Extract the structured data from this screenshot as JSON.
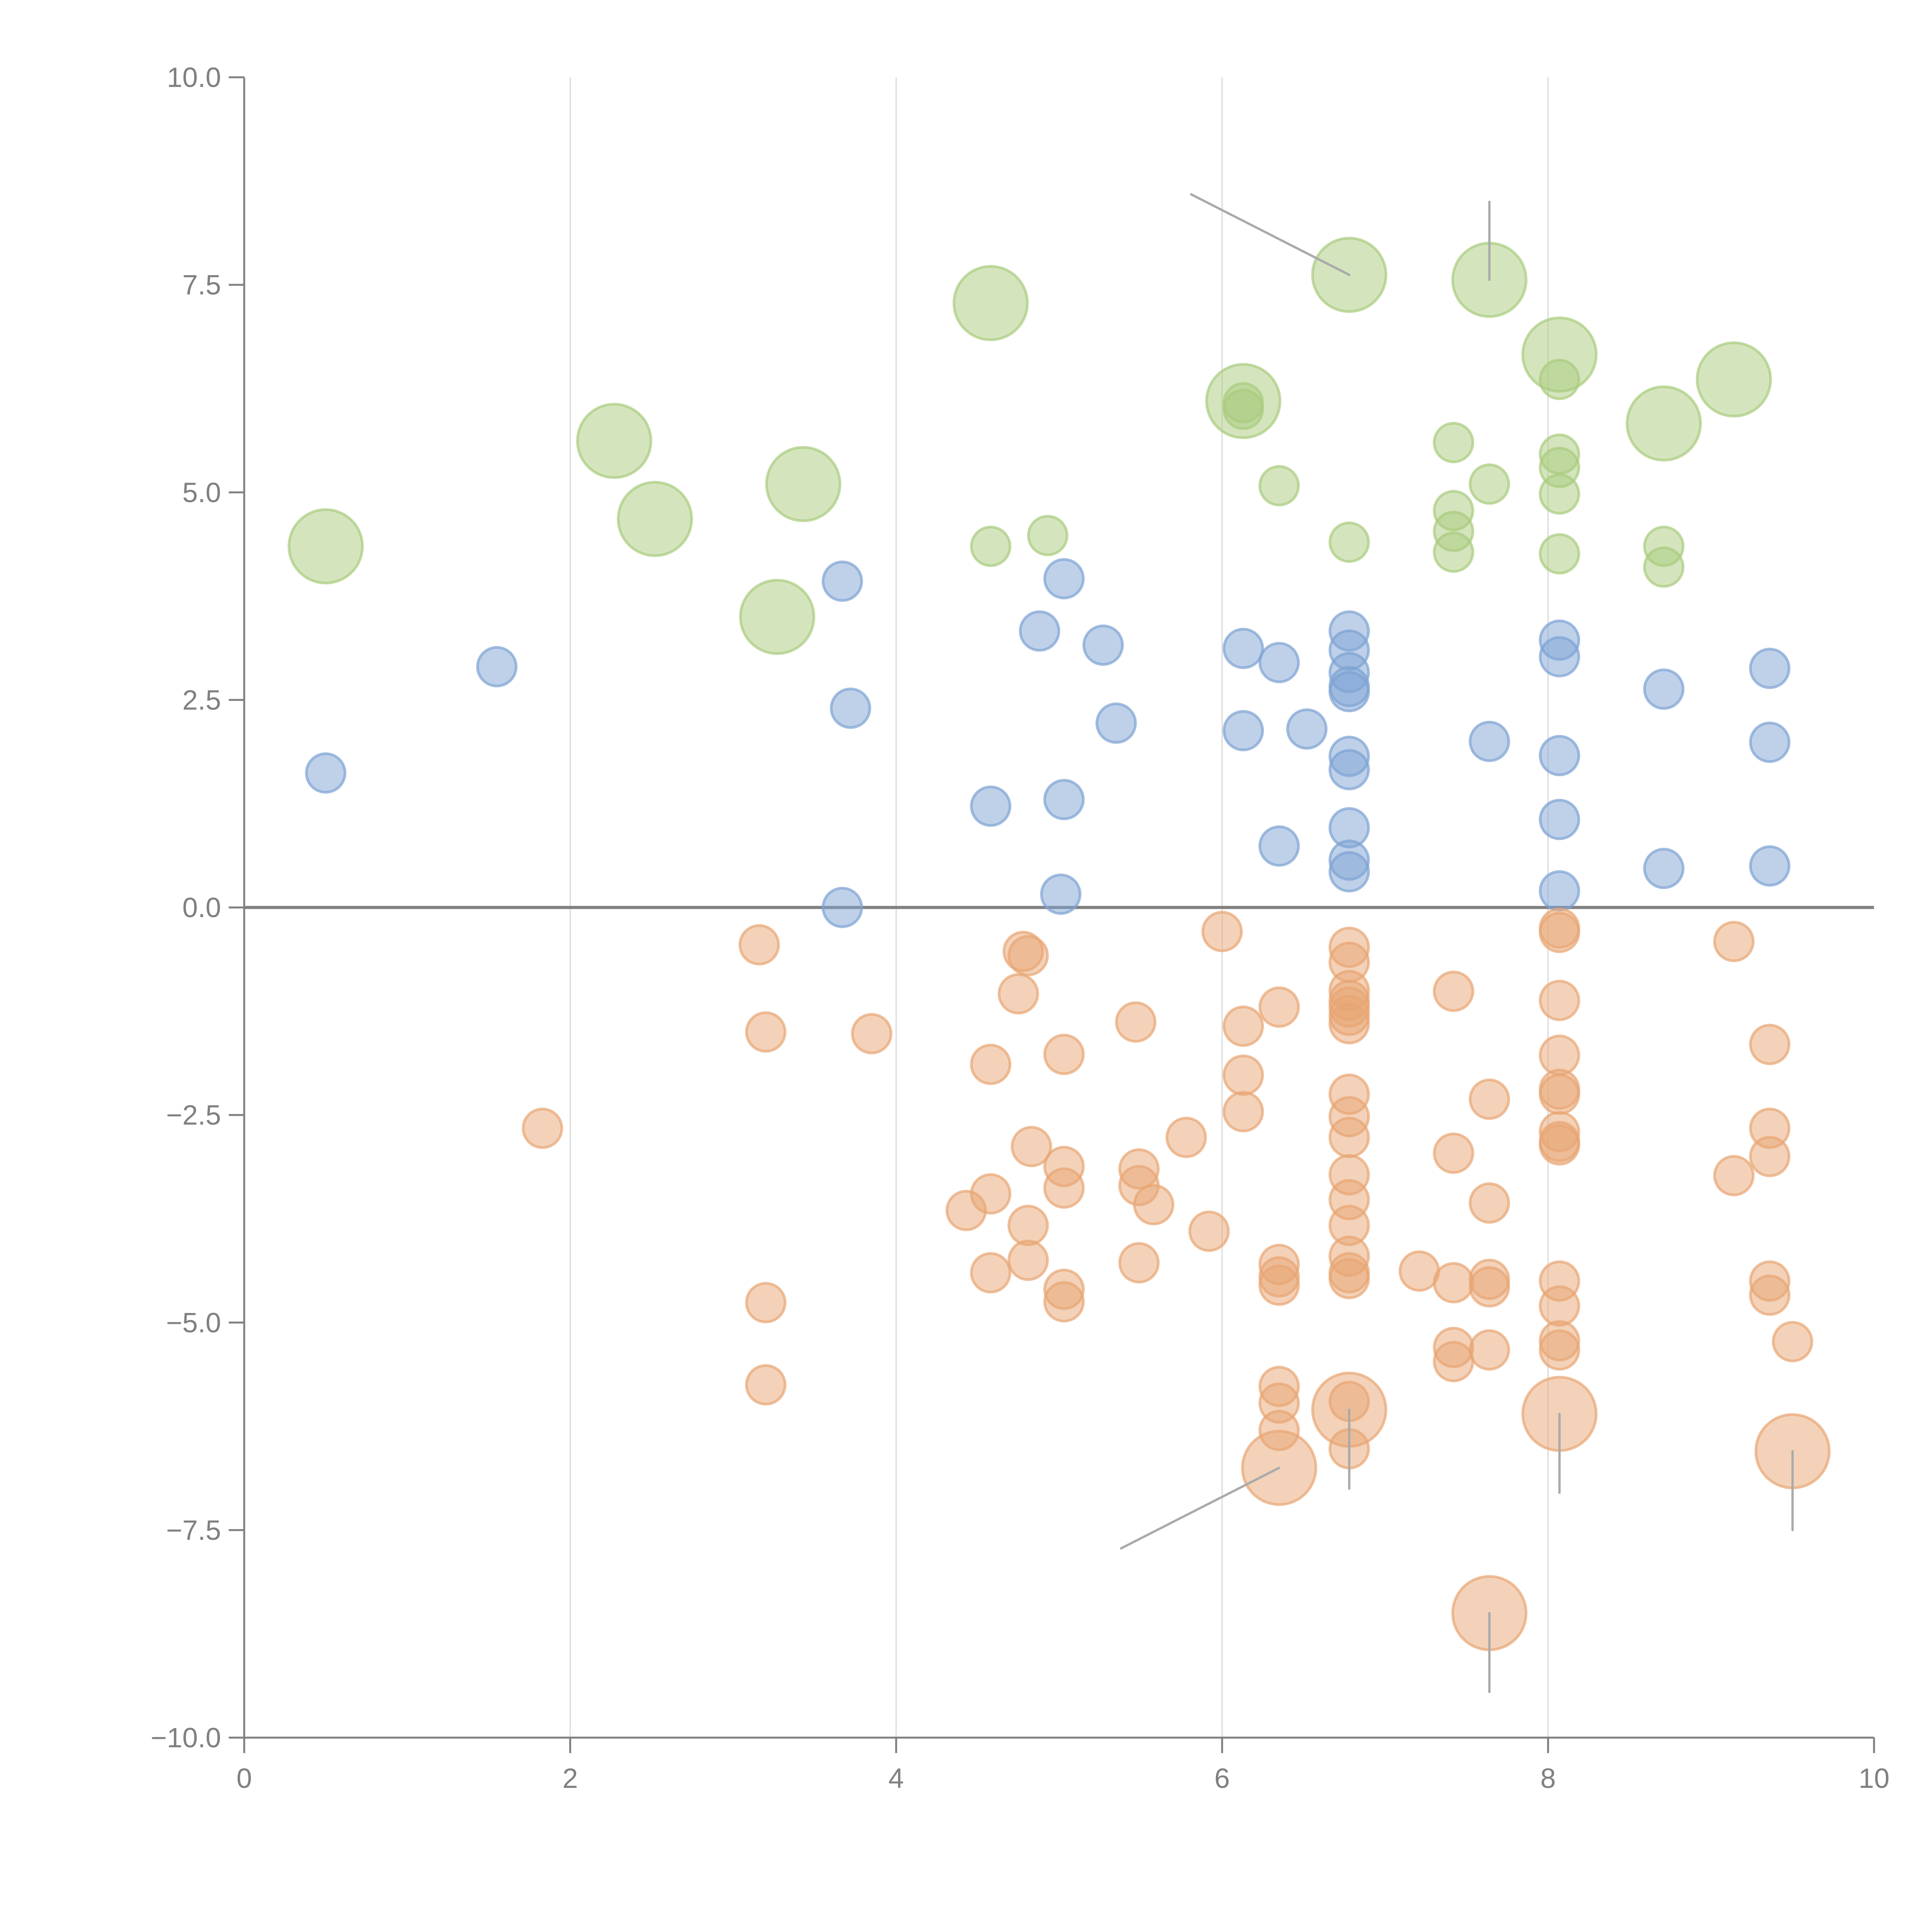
{
  "chart_data": {
    "type": "scatter",
    "title": "",
    "xlabel": "",
    "ylabel": "",
    "xlim": [
      0,
      10
    ],
    "ylim": [
      -10,
      10
    ],
    "x_ticks": [
      0,
      2,
      4,
      6,
      8,
      10
    ],
    "x_tick_labels": [
      "0",
      "2",
      "4",
      "6",
      "8",
      "10"
    ],
    "y_ticks": [
      10,
      7.5,
      5,
      2.5,
      0,
      -2.5,
      -5,
      -7.5,
      -10
    ],
    "y_tick_labels": [
      "10.0",
      "7.5",
      "5.0",
      "2.5",
      "0.0",
      "−2.5",
      "−5.0",
      "−7.5",
      "−10.0"
    ],
    "grid": "vertical",
    "zero_line": true,
    "legend": "none",
    "series": [
      {
        "name": "green",
        "color": "#a9cc7d",
        "points": [
          {
            "x": 0.5,
            "y": 4.35,
            "size": "large"
          },
          {
            "x": 2.27,
            "y": 5.62,
            "size": "large"
          },
          {
            "x": 2.52,
            "y": 4.68,
            "size": "large"
          },
          {
            "x": 3.43,
            "y": 5.1,
            "size": "large"
          },
          {
            "x": 3.27,
            "y": 3.5,
            "size": "large"
          },
          {
            "x": 4.58,
            "y": 7.28,
            "size": "large"
          },
          {
            "x": 6.13,
            "y": 6.1,
            "size": "large"
          },
          {
            "x": 6.78,
            "y": 7.62,
            "size": "large"
          },
          {
            "x": 7.64,
            "y": 7.56,
            "size": "large"
          },
          {
            "x": 8.07,
            "y": 6.66,
            "size": "large"
          },
          {
            "x": 8.71,
            "y": 5.83,
            "size": "large"
          },
          {
            "x": 9.14,
            "y": 6.36,
            "size": "large"
          },
          {
            "x": 4.58,
            "y": 4.35,
            "size": "small"
          },
          {
            "x": 4.93,
            "y": 4.48,
            "size": "small"
          },
          {
            "x": 6.13,
            "y": 6.08,
            "size": "small"
          },
          {
            "x": 6.13,
            "y": 6.0,
            "size": "small"
          },
          {
            "x": 6.35,
            "y": 5.08,
            "size": "small"
          },
          {
            "x": 6.78,
            "y": 4.4,
            "size": "small"
          },
          {
            "x": 7.42,
            "y": 5.6,
            "size": "small"
          },
          {
            "x": 7.42,
            "y": 4.78,
            "size": "small"
          },
          {
            "x": 7.42,
            "y": 4.53,
            "size": "small"
          },
          {
            "x": 7.42,
            "y": 4.28,
            "size": "small"
          },
          {
            "x": 7.64,
            "y": 5.1,
            "size": "small"
          },
          {
            "x": 8.07,
            "y": 6.36,
            "size": "small"
          },
          {
            "x": 8.07,
            "y": 5.46,
            "size": "small"
          },
          {
            "x": 8.07,
            "y": 5.3,
            "size": "small"
          },
          {
            "x": 8.07,
            "y": 4.98,
            "size": "small"
          },
          {
            "x": 8.07,
            "y": 4.26,
            "size": "small"
          },
          {
            "x": 8.71,
            "y": 4.35,
            "size": "small"
          },
          {
            "x": 8.71,
            "y": 4.1,
            "size": "small"
          }
        ]
      },
      {
        "name": "blue",
        "color": "#7ea3d3",
        "points": [
          {
            "x": 0.5,
            "y": 1.62
          },
          {
            "x": 1.55,
            "y": 2.9
          },
          {
            "x": 3.67,
            "y": 3.93
          },
          {
            "x": 3.72,
            "y": 2.4
          },
          {
            "x": 3.67,
            "y": 0.0
          },
          {
            "x": 4.58,
            "y": 1.22
          },
          {
            "x": 4.88,
            "y": 3.33
          },
          {
            "x": 5.03,
            "y": 3.96
          },
          {
            "x": 5.03,
            "y": 1.3
          },
          {
            "x": 5.01,
            "y": 0.16
          },
          {
            "x": 5.27,
            "y": 3.16
          },
          {
            "x": 5.35,
            "y": 2.22
          },
          {
            "x": 6.13,
            "y": 3.12
          },
          {
            "x": 6.13,
            "y": 2.13
          },
          {
            "x": 6.35,
            "y": 2.95
          },
          {
            "x": 6.52,
            "y": 2.15
          },
          {
            "x": 6.35,
            "y": 0.74
          },
          {
            "x": 6.78,
            "y": 3.33
          },
          {
            "x": 6.78,
            "y": 3.1
          },
          {
            "x": 6.78,
            "y": 2.83
          },
          {
            "x": 6.78,
            "y": 2.66
          },
          {
            "x": 6.78,
            "y": 2.6
          },
          {
            "x": 6.78,
            "y": 1.82
          },
          {
            "x": 6.78,
            "y": 1.66
          },
          {
            "x": 6.78,
            "y": 0.96
          },
          {
            "x": 6.78,
            "y": 0.57
          },
          {
            "x": 6.78,
            "y": 0.43
          },
          {
            "x": 7.64,
            "y": 2.0
          },
          {
            "x": 8.07,
            "y": 3.22
          },
          {
            "x": 8.07,
            "y": 3.02
          },
          {
            "x": 8.07,
            "y": 1.83
          },
          {
            "x": 8.07,
            "y": 1.06
          },
          {
            "x": 8.07,
            "y": 0.2
          },
          {
            "x": 8.71,
            "y": 2.63
          },
          {
            "x": 8.71,
            "y": 0.47
          },
          {
            "x": 9.36,
            "y": 2.88
          },
          {
            "x": 9.36,
            "y": 1.99
          },
          {
            "x": 9.36,
            "y": 0.5
          }
        ]
      },
      {
        "name": "orange",
        "color": "#e8a574",
        "points": [
          {
            "x": 1.83,
            "y": -2.66,
            "size": "small"
          },
          {
            "x": 3.16,
            "y": -0.45,
            "size": "small"
          },
          {
            "x": 3.2,
            "y": -1.5,
            "size": "small"
          },
          {
            "x": 3.2,
            "y": -4.76,
            "size": "small"
          },
          {
            "x": 3.2,
            "y": -5.75,
            "size": "small"
          },
          {
            "x": 3.85,
            "y": -1.52,
            "size": "small"
          },
          {
            "x": 4.43,
            "y": -3.65,
            "size": "small"
          },
          {
            "x": 4.58,
            "y": -1.89,
            "size": "small"
          },
          {
            "x": 4.58,
            "y": -3.45,
            "size": "small"
          },
          {
            "x": 4.58,
            "y": -4.4,
            "size": "small"
          },
          {
            "x": 4.75,
            "y": -1.04,
            "size": "small"
          },
          {
            "x": 4.78,
            "y": -0.53,
            "size": "small"
          },
          {
            "x": 4.81,
            "y": -0.58,
            "size": "small"
          },
          {
            "x": 4.83,
            "y": -2.88,
            "size": "small"
          },
          {
            "x": 4.81,
            "y": -3.83,
            "size": "small"
          },
          {
            "x": 4.81,
            "y": -4.25,
            "size": "small"
          },
          {
            "x": 5.03,
            "y": -1.77,
            "size": "small"
          },
          {
            "x": 5.03,
            "y": -3.12,
            "size": "small"
          },
          {
            "x": 5.03,
            "y": -3.38,
            "size": "small"
          },
          {
            "x": 5.03,
            "y": -4.6,
            "size": "small"
          },
          {
            "x": 5.03,
            "y": -4.75,
            "size": "small"
          },
          {
            "x": 5.47,
            "y": -1.38,
            "size": "small"
          },
          {
            "x": 5.49,
            "y": -3.15,
            "size": "small"
          },
          {
            "x": 5.49,
            "y": -3.35,
            "size": "small"
          },
          {
            "x": 5.58,
            "y": -3.58,
            "size": "small"
          },
          {
            "x": 5.49,
            "y": -4.28,
            "size": "small"
          },
          {
            "x": 5.78,
            "y": -2.77,
            "size": "small"
          },
          {
            "x": 5.92,
            "y": -3.9,
            "size": "small"
          },
          {
            "x": 6.0,
            "y": -0.29,
            "size": "small"
          },
          {
            "x": 6.13,
            "y": -1.43,
            "size": "small"
          },
          {
            "x": 6.13,
            "y": -2.02,
            "size": "small"
          },
          {
            "x": 6.13,
            "y": -2.46,
            "size": "small"
          },
          {
            "x": 6.35,
            "y": -1.2,
            "size": "small"
          },
          {
            "x": 6.35,
            "y": -4.3,
            "size": "small"
          },
          {
            "x": 6.35,
            "y": -4.45,
            "size": "small"
          },
          {
            "x": 6.35,
            "y": -4.55,
            "size": "small"
          },
          {
            "x": 6.35,
            "y": -5.77,
            "size": "small"
          },
          {
            "x": 6.35,
            "y": -5.97,
            "size": "small"
          },
          {
            "x": 6.35,
            "y": -6.3,
            "size": "small"
          },
          {
            "x": 6.35,
            "y": -6.75,
            "size": "large"
          },
          {
            "x": 6.78,
            "y": -0.48,
            "size": "small"
          },
          {
            "x": 6.78,
            "y": -0.66,
            "size": "small"
          },
          {
            "x": 6.78,
            "y": -1.0,
            "size": "small"
          },
          {
            "x": 6.78,
            "y": -1.12,
            "size": "small"
          },
          {
            "x": 6.78,
            "y": -1.2,
            "size": "small"
          },
          {
            "x": 6.78,
            "y": -1.3,
            "size": "small"
          },
          {
            "x": 6.78,
            "y": -1.4,
            "size": "small"
          },
          {
            "x": 6.78,
            "y": -2.25,
            "size": "small"
          },
          {
            "x": 6.78,
            "y": -2.52,
            "size": "small"
          },
          {
            "x": 6.78,
            "y": -2.77,
            "size": "small"
          },
          {
            "x": 6.78,
            "y": -3.22,
            "size": "small"
          },
          {
            "x": 6.78,
            "y": -3.52,
            "size": "small"
          },
          {
            "x": 6.78,
            "y": -3.83,
            "size": "small"
          },
          {
            "x": 6.78,
            "y": -4.2,
            "size": "small"
          },
          {
            "x": 6.78,
            "y": -4.4,
            "size": "small"
          },
          {
            "x": 6.78,
            "y": -4.47,
            "size": "small"
          },
          {
            "x": 6.78,
            "y": -5.95,
            "size": "small"
          },
          {
            "x": 6.78,
            "y": -6.05,
            "size": "large"
          },
          {
            "x": 6.78,
            "y": -6.52,
            "size": "small"
          },
          {
            "x": 7.21,
            "y": -4.38,
            "size": "small"
          },
          {
            "x": 7.42,
            "y": -1.01,
            "size": "small"
          },
          {
            "x": 7.42,
            "y": -2.96,
            "size": "small"
          },
          {
            "x": 7.42,
            "y": -4.52,
            "size": "small"
          },
          {
            "x": 7.42,
            "y": -5.3,
            "size": "small"
          },
          {
            "x": 7.42,
            "y": -5.47,
            "size": "small"
          },
          {
            "x": 7.64,
            "y": -2.31,
            "size": "small"
          },
          {
            "x": 7.64,
            "y": -3.56,
            "size": "small"
          },
          {
            "x": 7.64,
            "y": -4.48,
            "size": "small"
          },
          {
            "x": 7.64,
            "y": -4.57,
            "size": "small"
          },
          {
            "x": 7.64,
            "y": -5.33,
            "size": "small"
          },
          {
            "x": 7.64,
            "y": -8.5,
            "size": "large"
          },
          {
            "x": 8.07,
            "y": -0.25,
            "size": "small"
          },
          {
            "x": 8.07,
            "y": -0.3,
            "size": "small"
          },
          {
            "x": 8.07,
            "y": -1.12,
            "size": "small"
          },
          {
            "x": 8.07,
            "y": -1.78,
            "size": "small"
          },
          {
            "x": 8.07,
            "y": -2.19,
            "size": "small"
          },
          {
            "x": 8.07,
            "y": -2.25,
            "size": "small"
          },
          {
            "x": 8.07,
            "y": -2.7,
            "size": "small"
          },
          {
            "x": 8.07,
            "y": -2.82,
            "size": "small"
          },
          {
            "x": 8.07,
            "y": -2.86,
            "size": "small"
          },
          {
            "x": 8.07,
            "y": -4.5,
            "size": "small"
          },
          {
            "x": 8.07,
            "y": -4.8,
            "size": "small"
          },
          {
            "x": 8.07,
            "y": -5.22,
            "size": "small"
          },
          {
            "x": 8.07,
            "y": -5.33,
            "size": "small"
          },
          {
            "x": 8.07,
            "y": -6.1,
            "size": "large"
          },
          {
            "x": 9.14,
            "y": -0.41,
            "size": "small"
          },
          {
            "x": 9.14,
            "y": -3.23,
            "size": "small"
          },
          {
            "x": 9.36,
            "y": -1.65,
            "size": "small"
          },
          {
            "x": 9.36,
            "y": -2.66,
            "size": "small"
          },
          {
            "x": 9.36,
            "y": -3.0,
            "size": "small"
          },
          {
            "x": 9.36,
            "y": -4.5,
            "size": "small"
          },
          {
            "x": 9.36,
            "y": -4.67,
            "size": "small"
          },
          {
            "x": 9.5,
            "y": -5.23,
            "size": "small"
          },
          {
            "x": 9.5,
            "y": -6.55,
            "size": "large"
          }
        ]
      }
    ],
    "annotations": [
      {
        "from": [
          6.78,
          7.62
        ],
        "to": [
          5.81,
          8.59
        ],
        "color": "#aaaaaa"
      },
      {
        "from": [
          7.64,
          7.56
        ],
        "to": [
          7.64,
          8.5
        ],
        "color": "#aaaaaa"
      },
      {
        "from": [
          6.35,
          -6.75
        ],
        "to": [
          5.38,
          -7.72
        ],
        "color": "#aaaaaa"
      },
      {
        "from": [
          6.78,
          -6.05
        ],
        "to": [
          6.78,
          -7.0
        ],
        "color": "#aaaaaa"
      },
      {
        "from": [
          8.07,
          -6.1
        ],
        "to": [
          8.07,
          -7.05
        ],
        "color": "#aaaaaa"
      },
      {
        "from": [
          9.5,
          -6.55
        ],
        "to": [
          9.5,
          -7.5
        ],
        "color": "#aaaaaa"
      },
      {
        "from": [
          7.64,
          -8.5
        ],
        "to": [
          7.64,
          -9.45
        ],
        "color": "#aaaaaa"
      }
    ]
  }
}
